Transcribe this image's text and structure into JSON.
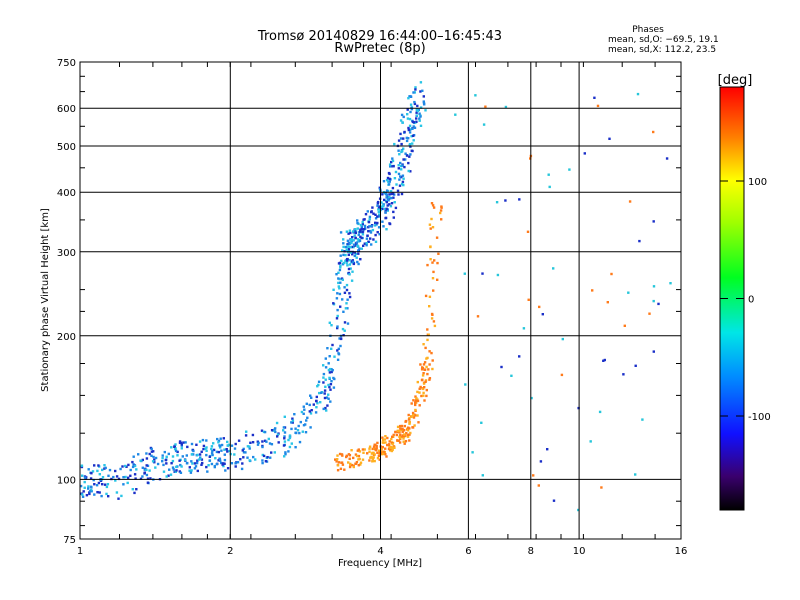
{
  "chart_data": {
    "type": "scatter",
    "title": "Tromsø 20140829 16:44:00–16:45:43",
    "subtitle": "RwPretec (8p)",
    "phases": {
      "heading": "Phases",
      "line_o": "mean, sd,O: −69.5, 19.1",
      "line_x": "mean, sd,X: 112.2, 23.5"
    },
    "xlabel": "Frequency [MHz]",
    "ylabel": "Stationary phase Virtual Height [km]",
    "xscale": "log",
    "yscale": "log",
    "xlim": [
      1,
      16
    ],
    "ylim": [
      75,
      750
    ],
    "x_ticks": [
      1,
      2,
      4,
      6,
      8,
      10,
      16
    ],
    "x_tick_labels": [
      "1",
      "2",
      "4",
      "6",
      "8",
      "10",
      "16"
    ],
    "y_ticks": [
      75,
      100,
      200,
      300,
      400,
      500,
      600,
      750
    ],
    "y_tick_labels": [
      "75",
      "100",
      "200",
      "300",
      "400",
      "500",
      "600",
      "750"
    ],
    "grid": true,
    "colorbar": {
      "label": "[deg]",
      "range": [
        -180,
        180
      ],
      "ticks": [
        100,
        0,
        -100
      ],
      "tick_labels": [
        "100",
        "0",
        "-100"
      ]
    },
    "trace_colors": {
      "o_mode": "#1e88e5",
      "o_mode_dark": "#1a2fc8",
      "o_mode_light": "#29c5e6",
      "x_mode": "#ff7a1a",
      "x_mode_light": "#ffb020",
      "noise": "#26c6da"
    },
    "series": [
      {
        "name": "O-mode",
        "phase_mean": -69.5,
        "phase_sd": 19.1,
        "x": [
          1.0,
          1.05,
          1.1,
          1.2,
          1.3,
          1.4,
          1.5,
          1.6,
          1.7,
          1.8,
          1.9,
          2.0,
          2.2,
          2.4,
          2.6,
          2.8,
          3.0,
          3.1,
          3.2,
          3.3,
          3.35,
          3.4,
          3.45,
          3.5,
          3.55,
          3.6,
          3.7,
          3.8,
          3.9,
          4.0,
          4.1,
          4.2,
          4.3,
          4.4,
          4.5,
          4.6,
          4.7,
          4.8
        ],
        "y": [
          100,
          99,
          100,
          98,
          104,
          107,
          110,
          112,
          111,
          112,
          113,
          114,
          116,
          119,
          124,
          130,
          145,
          158,
          180,
          215,
          260,
          290,
          310,
          305,
          310,
          318,
          325,
          335,
          345,
          360,
          375,
          395,
          420,
          460,
          510,
          560,
          610,
          640
        ]
      },
      {
        "name": "X-mode",
        "phase_mean": 112.2,
        "phase_sd": 23.5,
        "x": [
          3.3,
          3.5,
          3.7,
          3.9,
          4.0,
          4.1,
          4.2,
          4.3,
          4.4,
          4.5,
          4.6,
          4.7,
          4.8,
          4.9,
          5.0,
          5.1,
          5.2
        ],
        "y": [
          108,
          110,
          112,
          114,
          115,
          117,
          119,
          121,
          123,
          126,
          132,
          140,
          150,
          165,
          185,
          300,
          395
        ]
      }
    ]
  }
}
